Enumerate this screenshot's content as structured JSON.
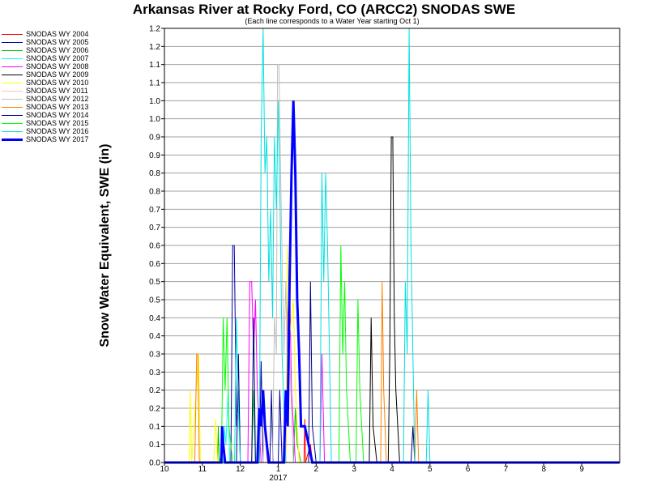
{
  "chart_data": {
    "type": "line",
    "title": "Arkansas River at Rocky Ford, CO (ARCC2) SNODAS SWE",
    "subtitle": "(Each line corresponds to a Water Year starting Oct 1)",
    "ylabel": "Snow Water Equivalent, SWE (in)",
    "ylim": [
      0,
      1.2
    ],
    "yticks": [
      "0.0",
      "0.1",
      "0.1",
      "0.2",
      "0.2",
      "0.3",
      "0.3",
      "0.4",
      "0.4",
      "0.5",
      "0.5",
      "0.6",
      "0.6",
      "0.7",
      "0.7",
      "0.8",
      "0.8",
      "0.9",
      "0.9",
      "1.0",
      "1.0",
      "1.1",
      "1.1",
      "1.2",
      "1.2"
    ],
    "xlim": [
      0,
      12
    ],
    "xticks": [
      "10",
      "11",
      "12",
      "1",
      "2",
      "3",
      "4",
      "5",
      "6",
      "7",
      "8",
      "9"
    ],
    "xsublabel": "2017",
    "grid": "horizontal",
    "legend_position": "left",
    "series": [
      {
        "name": "SNODAS WY 2004",
        "color": "#ff0000",
        "width": 1,
        "points": [
          [
            0,
            0
          ],
          [
            3.68,
            0
          ],
          [
            3.7,
            0.12
          ],
          [
            3.72,
            0
          ],
          [
            3.85,
            0.05
          ],
          [
            3.9,
            0
          ],
          [
            12,
            0
          ]
        ]
      },
      {
        "name": "SNODAS WY 2005",
        "color": "#0000a0",
        "width": 1,
        "points": [
          [
            0,
            0
          ],
          [
            1.75,
            0
          ],
          [
            1.8,
            0.6
          ],
          [
            1.84,
            0.6
          ],
          [
            1.9,
            0.1
          ],
          [
            1.96,
            0.2
          ],
          [
            2.0,
            0
          ],
          [
            2.5,
            0
          ],
          [
            2.55,
            0.28
          ],
          [
            2.6,
            0
          ],
          [
            2.78,
            0
          ],
          [
            2.82,
            0.2
          ],
          [
            2.86,
            0
          ],
          [
            3.0,
            0
          ],
          [
            3.04,
            0.2
          ],
          [
            3.1,
            0
          ],
          [
            12,
            0
          ]
        ]
      },
      {
        "name": "SNODAS WY 2006",
        "color": "#00c000",
        "width": 1,
        "points": [
          [
            0,
            0
          ],
          [
            1.4,
            0
          ],
          [
            1.42,
            0.1
          ],
          [
            1.45,
            0
          ],
          [
            1.55,
            0.05
          ],
          [
            1.6,
            0
          ],
          [
            2.3,
            0
          ],
          [
            2.35,
            0.2
          ],
          [
            2.4,
            0
          ],
          [
            3.4,
            0
          ],
          [
            3.45,
            0.15
          ],
          [
            3.5,
            0.05
          ],
          [
            3.6,
            0
          ],
          [
            12,
            0
          ]
        ]
      },
      {
        "name": "SNODAS WY 2007",
        "color": "#00ffff",
        "width": 1,
        "points": [
          [
            0,
            0
          ],
          [
            1.55,
            0
          ],
          [
            1.58,
            0.1
          ],
          [
            1.62,
            0.05
          ],
          [
            1.68,
            0.2
          ],
          [
            1.72,
            0
          ],
          [
            12,
            0
          ]
        ]
      },
      {
        "name": "SNODAS WY 2008",
        "color": "#ff00ff",
        "width": 1,
        "points": [
          [
            0,
            0
          ],
          [
            2.2,
            0
          ],
          [
            2.25,
            0.5
          ],
          [
            2.3,
            0.5
          ],
          [
            2.35,
            0.3
          ],
          [
            2.4,
            0.45
          ],
          [
            2.45,
            0.2
          ],
          [
            2.55,
            0
          ],
          [
            3.2,
            0
          ],
          [
            3.25,
            0.4
          ],
          [
            3.3,
            0.5
          ],
          [
            3.35,
            0.2
          ],
          [
            3.45,
            0
          ],
          [
            4.1,
            0
          ],
          [
            4.15,
            0.3
          ],
          [
            4.22,
            0
          ],
          [
            12,
            0
          ]
        ]
      },
      {
        "name": "SNODAS WY 2009",
        "color": "#000000",
        "width": 1,
        "points": [
          [
            0,
            0
          ],
          [
            5.4,
            0
          ],
          [
            5.45,
            0.4
          ],
          [
            5.5,
            0.1
          ],
          [
            5.6,
            0
          ],
          [
            5.9,
            0
          ],
          [
            5.94,
            0.3
          ],
          [
            5.98,
            0.9
          ],
          [
            6.02,
            0.9
          ],
          [
            6.06,
            0.4
          ],
          [
            6.1,
            0.2
          ],
          [
            6.2,
            0
          ],
          [
            12,
            0
          ]
        ]
      },
      {
        "name": "SNODAS WY 2010",
        "color": "#ffff00",
        "width": 1,
        "points": [
          [
            0,
            0
          ],
          [
            0.65,
            0
          ],
          [
            0.68,
            0.2
          ],
          [
            0.72,
            0
          ],
          [
            0.9,
            0.3
          ],
          [
            0.95,
            0
          ],
          [
            1.3,
            0
          ],
          [
            1.35,
            0.12
          ],
          [
            1.4,
            0
          ],
          [
            3.2,
            0
          ],
          [
            3.25,
            0.6
          ],
          [
            3.3,
            0.35
          ],
          [
            3.4,
            0.45
          ],
          [
            3.45,
            0.2
          ],
          [
            3.55,
            0
          ],
          [
            12,
            0
          ]
        ]
      },
      {
        "name": "SNODAS WY 2011",
        "color": "#ffc0c0",
        "width": 1,
        "points": [
          [
            0,
            0
          ],
          [
            2.6,
            0
          ],
          [
            2.65,
            0.15
          ],
          [
            2.7,
            0
          ],
          [
            12,
            0
          ]
        ]
      },
      {
        "name": "SNODAS WY 2012",
        "color": "#c0c0c0",
        "width": 1,
        "points": [
          [
            0,
            0
          ],
          [
            2.85,
            0
          ],
          [
            2.9,
            0.4
          ],
          [
            2.95,
            0.3
          ],
          [
            2.98,
            1.1
          ],
          [
            3.02,
            1.1
          ],
          [
            3.08,
            0.7
          ],
          [
            3.15,
            0.3
          ],
          [
            3.2,
            0.5
          ],
          [
            3.25,
            0.2
          ],
          [
            3.3,
            0.3
          ],
          [
            3.4,
            0
          ],
          [
            12,
            0
          ]
        ]
      },
      {
        "name": "SNODAS WY 2013",
        "color": "#ff8000",
        "width": 1,
        "points": [
          [
            0,
            0
          ],
          [
            0.8,
            0
          ],
          [
            0.85,
            0.3
          ],
          [
            0.88,
            0.3
          ],
          [
            0.92,
            0
          ],
          [
            5.7,
            0
          ],
          [
            5.74,
            0.5
          ],
          [
            5.78,
            0.2
          ],
          [
            5.85,
            0
          ],
          [
            6.6,
            0
          ],
          [
            6.65,
            0.2
          ],
          [
            6.7,
            0
          ],
          [
            12,
            0
          ]
        ]
      },
      {
        "name": "SNODAS WY 2014",
        "color": "#000080",
        "width": 1,
        "points": [
          [
            0,
            0
          ],
          [
            1.9,
            0
          ],
          [
            1.95,
            0.3
          ],
          [
            2.0,
            0
          ],
          [
            2.3,
            0
          ],
          [
            2.35,
            0.4
          ],
          [
            2.4,
            0
          ],
          [
            3.8,
            0
          ],
          [
            3.85,
            0.5
          ],
          [
            3.9,
            0.1
          ],
          [
            4.0,
            0
          ],
          [
            6.5,
            0
          ],
          [
            6.55,
            0.1
          ],
          [
            6.6,
            0
          ],
          [
            12,
            0
          ]
        ]
      },
      {
        "name": "SNODAS WY 2015",
        "color": "#00ff00",
        "width": 1,
        "points": [
          [
            0,
            0
          ],
          [
            1.5,
            0
          ],
          [
            1.55,
            0.4
          ],
          [
            1.6,
            0.2
          ],
          [
            1.65,
            0.4
          ],
          [
            1.7,
            0.1
          ],
          [
            1.8,
            0
          ],
          [
            4.6,
            0
          ],
          [
            4.65,
            0.6
          ],
          [
            4.7,
            0.3
          ],
          [
            4.75,
            0.5
          ],
          [
            4.8,
            0.2
          ],
          [
            4.9,
            0
          ],
          [
            5.05,
            0
          ],
          [
            5.1,
            0.45
          ],
          [
            5.15,
            0.2
          ],
          [
            5.25,
            0
          ],
          [
            12,
            0
          ]
        ]
      },
      {
        "name": "SNODAS WY 2016",
        "color": "#00e0e0",
        "width": 1,
        "points": [
          [
            0,
            0
          ],
          [
            1.85,
            0
          ],
          [
            1.9,
            0.4
          ],
          [
            1.95,
            0.15
          ],
          [
            2.0,
            0
          ],
          [
            2.5,
            0
          ],
          [
            2.55,
            0.9
          ],
          [
            2.6,
            1.2
          ],
          [
            2.65,
            0.8
          ],
          [
            2.7,
            0.9
          ],
          [
            2.75,
            0.5
          ],
          [
            2.8,
            0.7
          ],
          [
            2.85,
            0.4
          ],
          [
            2.9,
            0.9
          ],
          [
            2.95,
            0.7
          ],
          [
            3.0,
            1.0
          ],
          [
            3.05,
            0.7
          ],
          [
            3.1,
            0.3
          ],
          [
            3.2,
            0
          ],
          [
            4.1,
            0
          ],
          [
            4.15,
            0.8
          ],
          [
            4.2,
            0.5
          ],
          [
            4.25,
            0.8
          ],
          [
            4.3,
            0.6
          ],
          [
            4.4,
            0
          ],
          [
            6.3,
            0
          ],
          [
            6.35,
            0.5
          ],
          [
            6.4,
            0.3
          ],
          [
            6.45,
            1.2
          ],
          [
            6.5,
            0.6
          ],
          [
            6.6,
            0
          ],
          [
            6.9,
            0
          ],
          [
            6.95,
            0.2
          ],
          [
            7.0,
            0
          ],
          [
            12,
            0
          ]
        ]
      },
      {
        "name": "SNODAS WY 2017",
        "color": "#0000ff",
        "width": 3,
        "points": [
          [
            0,
            0
          ],
          [
            1.5,
            0
          ],
          [
            1.52,
            0.1
          ],
          [
            1.55,
            0.05
          ],
          [
            1.6,
            0
          ],
          [
            2.45,
            0
          ],
          [
            2.5,
            0.15
          ],
          [
            2.55,
            0.1
          ],
          [
            2.6,
            0.2
          ],
          [
            2.65,
            0.1
          ],
          [
            2.7,
            0.05
          ],
          [
            2.75,
            0
          ],
          [
            3.15,
            0
          ],
          [
            3.2,
            0.2
          ],
          [
            3.25,
            0.1
          ],
          [
            3.3,
            0.5
          ],
          [
            3.35,
            0.8
          ],
          [
            3.4,
            1.0
          ],
          [
            3.45,
            0.8
          ],
          [
            3.5,
            0.45
          ],
          [
            3.55,
            0.3
          ],
          [
            3.6,
            0.1
          ],
          [
            3.7,
            0.1
          ],
          [
            3.8,
            0.05
          ],
          [
            3.9,
            0
          ],
          [
            12,
            0
          ]
        ]
      }
    ]
  }
}
